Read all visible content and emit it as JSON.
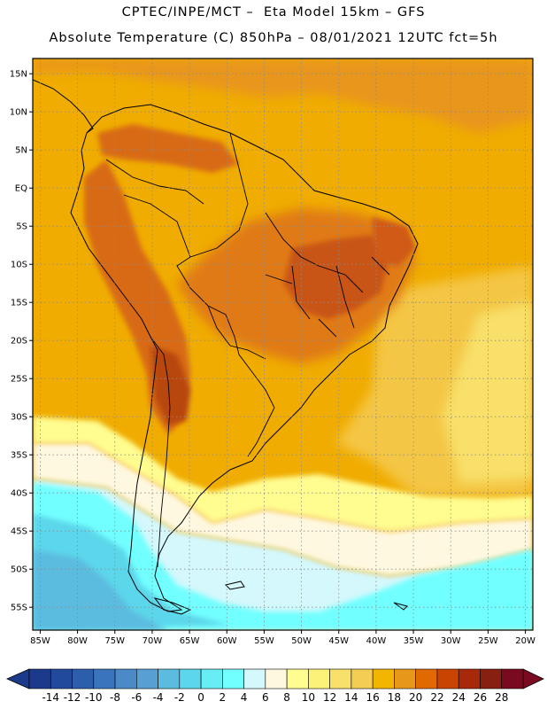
{
  "header": {
    "title_line_1": "CPTEC/INPE/MCT –  Eta Model 15km – GFS",
    "title_line_2": "Absolute Temperature (C) 850hPa – 08/01/2021 12UTC fct=5h"
  },
  "map": {
    "lon_range": [
      -86,
      -19
    ],
    "lat_range": [
      -58,
      17
    ],
    "lat_ticks": [
      {
        "value": 15,
        "label": "15N"
      },
      {
        "value": 10,
        "label": "10N"
      },
      {
        "value": 5,
        "label": "5N"
      },
      {
        "value": 0,
        "label": "EQ"
      },
      {
        "value": -5,
        "label": "5S"
      },
      {
        "value": -10,
        "label": "10S"
      },
      {
        "value": -15,
        "label": "15S"
      },
      {
        "value": -20,
        "label": "20S"
      },
      {
        "value": -25,
        "label": "25S"
      },
      {
        "value": -30,
        "label": "30S"
      },
      {
        "value": -35,
        "label": "35S"
      },
      {
        "value": -40,
        "label": "40S"
      },
      {
        "value": -45,
        "label": "45S"
      },
      {
        "value": -50,
        "label": "50S"
      },
      {
        "value": -55,
        "label": "55S"
      }
    ],
    "lon_ticks": [
      {
        "value": -85,
        "label": "85W"
      },
      {
        "value": -80,
        "label": "80W"
      },
      {
        "value": -75,
        "label": "75W"
      },
      {
        "value": -70,
        "label": "70W"
      },
      {
        "value": -65,
        "label": "65W"
      },
      {
        "value": -60,
        "label": "60W"
      },
      {
        "value": -55,
        "label": "55W"
      },
      {
        "value": -50,
        "label": "50W"
      },
      {
        "value": -45,
        "label": "45W"
      },
      {
        "value": -40,
        "label": "40W"
      },
      {
        "value": -35,
        "label": "35W"
      },
      {
        "value": -30,
        "label": "30W"
      },
      {
        "value": -25,
        "label": "25W"
      },
      {
        "value": -20,
        "label": "20W"
      }
    ],
    "grid": "dotted"
  },
  "colorbar": {
    "levels": [
      "-14",
      "-12",
      "-10",
      "-8",
      "-6",
      "-4",
      "-2",
      "0",
      "2",
      "4",
      "6",
      "8",
      "10",
      "12",
      "14",
      "16",
      "18",
      "20",
      "22",
      "24",
      "26",
      "28"
    ],
    "colors": [
      "#1c3a8c",
      "#224a9c",
      "#2c5eac",
      "#3a74bc",
      "#4a8ac8",
      "#58a0d4",
      "#5cbce0",
      "#5cd6ea",
      "#66eef4",
      "#72ffff",
      "#d4f8fc",
      "#fff8e0",
      "#fffc90",
      "#fcf27a",
      "#f8e06a",
      "#f4ce54",
      "#f2b600",
      "#e89818",
      "#e06a00",
      "#c84400",
      "#a8280a",
      "#882012",
      "#7a0a20"
    ]
  },
  "colors": {
    "warm_background": "#f0ac00",
    "hot_region": "#e07a18",
    "hottest_region": "#c85414",
    "cold_ocean": "#72ffff",
    "cool_band": "#d4f8fc",
    "pale_band": "#fff8e0",
    "yellow_band": "#f8e06a"
  }
}
